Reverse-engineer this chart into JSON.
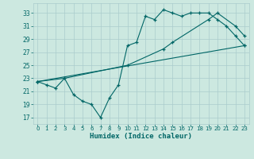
{
  "xlabel": "Humidex (Indice chaleur)",
  "xlim": [
    -0.5,
    23.5
  ],
  "ylim": [
    16,
    34.5
  ],
  "yticks": [
    17,
    19,
    21,
    23,
    25,
    27,
    29,
    31,
    33
  ],
  "xticks": [
    0,
    1,
    2,
    3,
    4,
    5,
    6,
    7,
    8,
    9,
    10,
    11,
    12,
    13,
    14,
    15,
    16,
    17,
    18,
    19,
    20,
    21,
    22,
    23
  ],
  "bg_color": "#cce8e0",
  "grid_color": "#aacccc",
  "line_color": "#006666",
  "line1_x": [
    0,
    1,
    2,
    3,
    4,
    5,
    6,
    7,
    8,
    9,
    10,
    11,
    12,
    13,
    14,
    15,
    16,
    17,
    18,
    19,
    20,
    21,
    22,
    23
  ],
  "line1_y": [
    22.5,
    22.0,
    21.5,
    23.0,
    20.5,
    19.5,
    19.0,
    17.0,
    20.0,
    22.0,
    28.0,
    28.5,
    32.5,
    32.0,
    33.5,
    33.0,
    32.5,
    33.0,
    33.0,
    33.0,
    32.0,
    31.0,
    29.5,
    28.0
  ],
  "line2_x": [
    0,
    3,
    10,
    14,
    15,
    19,
    20,
    22,
    23
  ],
  "line2_y": [
    22.5,
    23.0,
    25.0,
    27.5,
    28.5,
    32.0,
    33.0,
    31.0,
    29.5
  ],
  "line3_x": [
    0,
    23
  ],
  "line3_y": [
    22.5,
    28.0
  ]
}
